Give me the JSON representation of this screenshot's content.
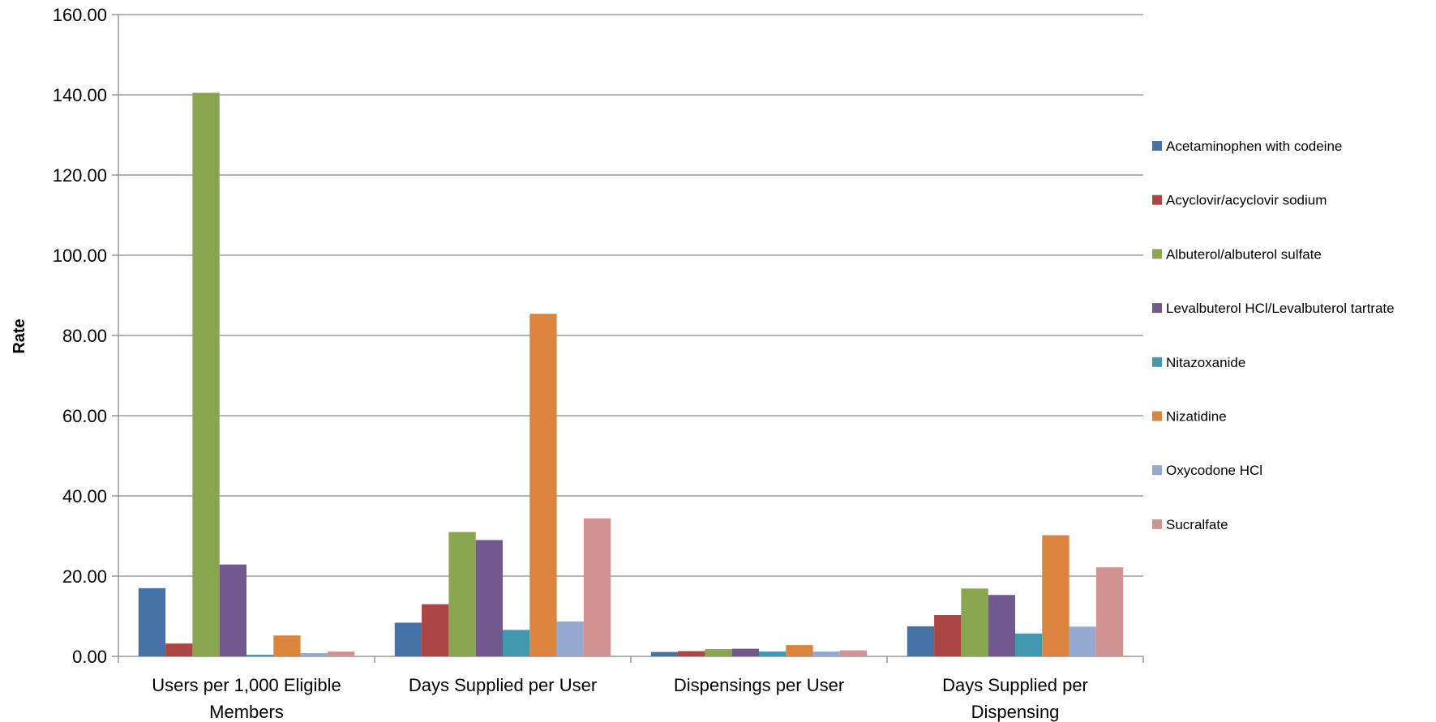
{
  "chart_data": {
    "type": "bar",
    "title": "",
    "xlabel": "",
    "ylabel": "Rate",
    "ylim": [
      0,
      160
    ],
    "y_ticks": [
      "0.00",
      "20.00",
      "40.00",
      "60.00",
      "80.00",
      "100.00",
      "120.00",
      "140.00",
      "160.00"
    ],
    "grid": true,
    "legend_position": "right",
    "categories": [
      [
        "Users per 1,000 Eligible",
        "Members"
      ],
      [
        "Days Supplied per User"
      ],
      [
        "Dispensings per User"
      ],
      [
        "Days Supplied per",
        "Dispensing"
      ]
    ],
    "series": [
      {
        "name": "Acetaminophen with codeine",
        "color": "#4572A7",
        "values": [
          17.0,
          8.4,
          1.1,
          7.5
        ]
      },
      {
        "name": "Acyclovir/acyclovir sodium",
        "color": "#AA4643",
        "values": [
          3.2,
          13.0,
          1.3,
          10.3
        ]
      },
      {
        "name": "Albuterol/albuterol sulfate",
        "color": "#89A54E",
        "values": [
          140.5,
          31.0,
          1.8,
          16.9
        ]
      },
      {
        "name": "Levalbuterol HCl/Levalbuterol tartrate",
        "color": "#71588F",
        "values": [
          22.9,
          29.0,
          1.9,
          15.3
        ]
      },
      {
        "name": "Nitazoxanide",
        "color": "#4198AF",
        "values": [
          0.4,
          6.6,
          1.2,
          5.7
        ]
      },
      {
        "name": "Nizatidine",
        "color": "#DB843D",
        "values": [
          5.2,
          85.4,
          2.8,
          30.2
        ]
      },
      {
        "name": "Oxycodone HCl",
        "color": "#93A9CF",
        "values": [
          0.8,
          8.7,
          1.2,
          7.4
        ]
      },
      {
        "name": "Sucralfate",
        "color": "#D19392",
        "values": [
          1.2,
          34.4,
          1.5,
          22.2
        ]
      }
    ]
  }
}
